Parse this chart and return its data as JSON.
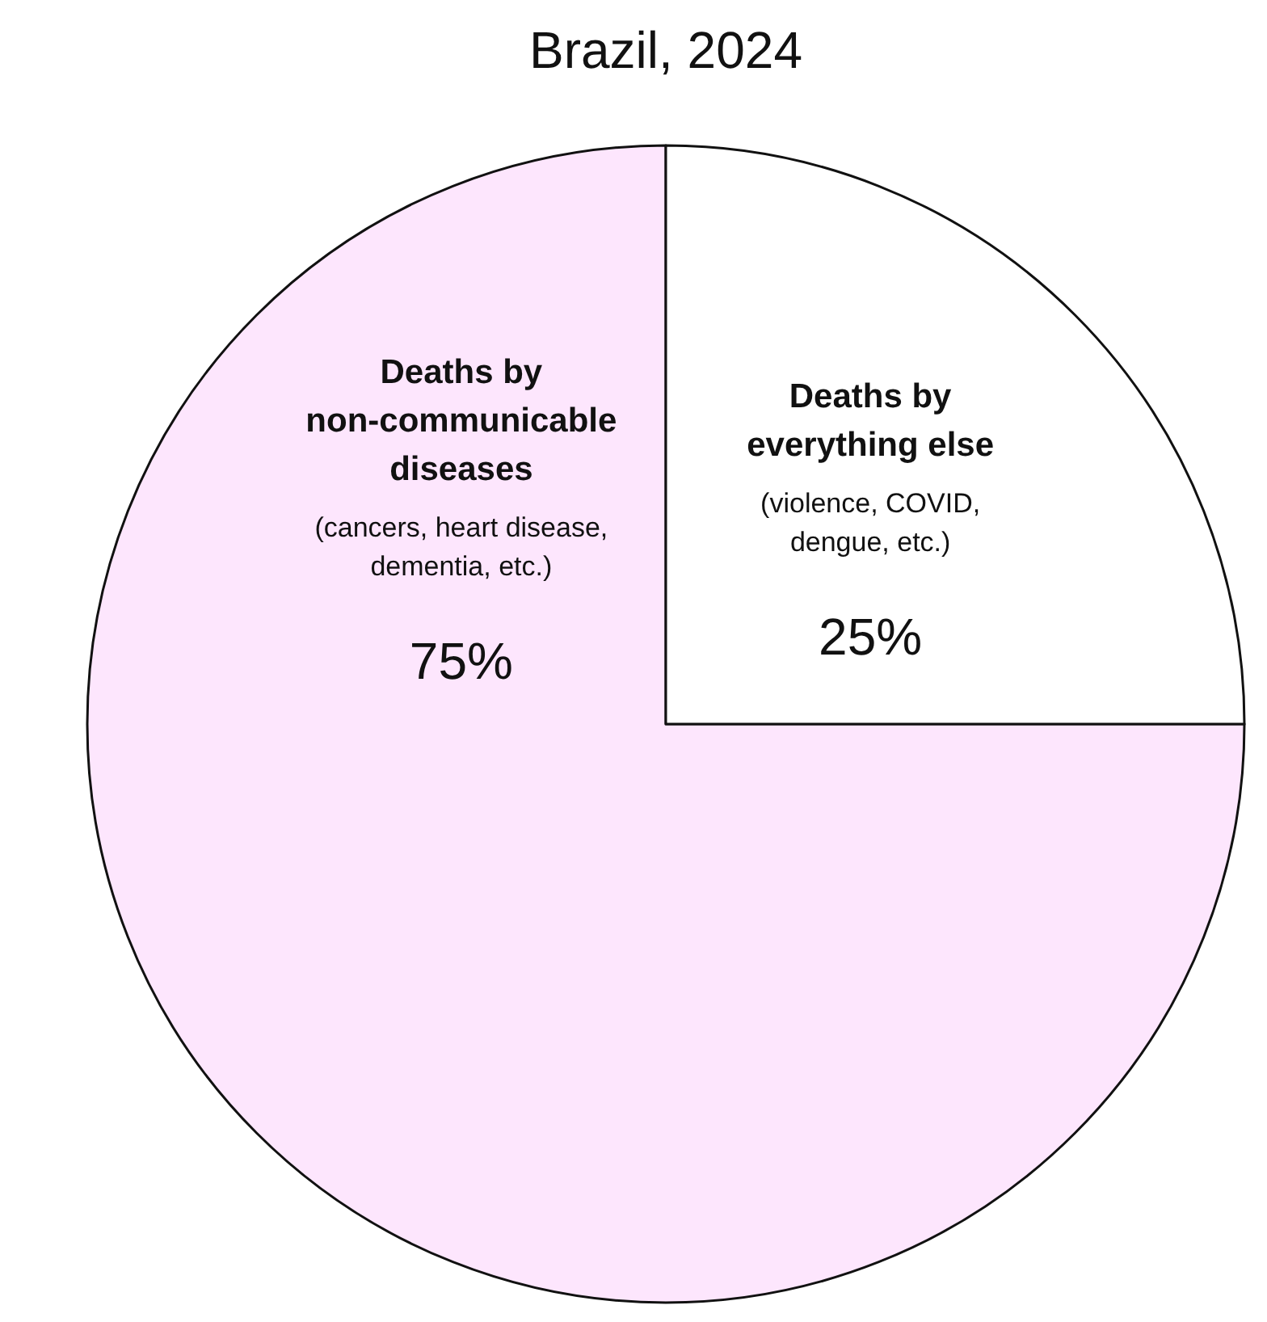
{
  "chart_data": {
    "type": "pie",
    "title": "Brazil, 2024",
    "categories": [
      "Deaths by non-communicable diseases",
      "Deaths by everything else"
    ],
    "values": [
      75,
      25
    ],
    "colors": [
      "#fde6fd",
      "#ffffff"
    ],
    "value_labels": [
      "75%",
      "25%"
    ],
    "annotations": [
      "(cancers, heart disease, dementia, etc.)",
      "(violence, COVID, dengue, etc.)"
    ]
  }
}
